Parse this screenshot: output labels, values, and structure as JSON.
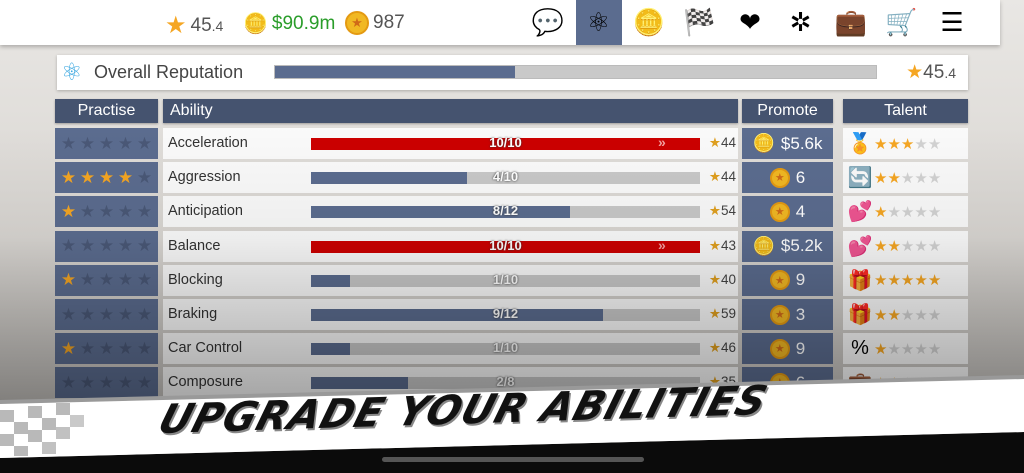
{
  "topbar": {
    "reputation": "45",
    "reputation_decimal": ".4",
    "money": "$90.9m",
    "tokens": "987",
    "nav": [
      {
        "icon": "chat-icon",
        "glyph": "💬"
      },
      {
        "icon": "atom-icon",
        "glyph": "⚛",
        "active": true
      },
      {
        "icon": "coins-icon",
        "glyph": "🪙"
      },
      {
        "icon": "checkered-flag-icon",
        "glyph": "🏁"
      },
      {
        "icon": "heart-icon",
        "glyph": "❤"
      },
      {
        "icon": "network-icon",
        "glyph": "✲"
      },
      {
        "icon": "briefcase-icon",
        "glyph": "💼"
      },
      {
        "icon": "cart-icon",
        "glyph": "🛒"
      },
      {
        "icon": "list-icon",
        "glyph": "☰"
      }
    ]
  },
  "reputation": {
    "label": "Overall Reputation",
    "value": "45",
    "value_decimal": ".4",
    "progress": 0.4
  },
  "headers": {
    "practise": "Practise",
    "ability": "Ability",
    "promote": "Promote",
    "talent": "Talent"
  },
  "rows": [
    {
      "name": "Acceleration",
      "current": 10,
      "max": 10,
      "frac": "10/10",
      "level": "44",
      "practise": 0,
      "promote": "$5.6k",
      "promote_icon": "coins-icon",
      "talent": 3,
      "talent_icon": "gold-medal-icon",
      "talent_glyph": "🏅"
    },
    {
      "name": "Aggression",
      "current": 4,
      "max": 10,
      "frac": "4/10",
      "level": "44",
      "practise": 4,
      "promote": "6",
      "promote_icon": "token-icon",
      "talent": 2,
      "talent_icon": "refresh-arrows-icon",
      "talent_glyph": "🔄"
    },
    {
      "name": "Anticipation",
      "current": 8,
      "max": 12,
      "frac": "8/12",
      "level": "54",
      "practise": 1,
      "promote": "4",
      "promote_icon": "token-icon",
      "talent": 1,
      "talent_icon": "hearts-token-icon",
      "talent_glyph": "💕"
    },
    {
      "name": "Balance",
      "current": 10,
      "max": 10,
      "frac": "10/10",
      "level": "43",
      "practise": 0,
      "promote": "$5.2k",
      "promote_icon": "coins-icon",
      "talent": 2,
      "talent_icon": "hearts-coins-icon",
      "talent_glyph": "💕"
    },
    {
      "name": "Blocking",
      "current": 1,
      "max": 10,
      "frac": "1/10",
      "level": "40",
      "practise": 1,
      "promote": "9",
      "promote_icon": "token-icon",
      "talent": 5,
      "talent_icon": "gift-coins-icon",
      "talent_glyph": "🎁"
    },
    {
      "name": "Braking",
      "current": 9,
      "max": 12,
      "frac": "9/12",
      "level": "59",
      "practise": 0,
      "promote": "3",
      "promote_icon": "token-icon",
      "talent": 2,
      "talent_icon": "gift-timer-icon",
      "talent_glyph": "🎁"
    },
    {
      "name": "Car Control",
      "current": 1,
      "max": 10,
      "frac": "1/10",
      "level": "46",
      "practise": 1,
      "promote": "9",
      "promote_icon": "token-icon",
      "talent": 1,
      "talent_icon": "percent-up-icon",
      "talent_glyph": "%"
    },
    {
      "name": "Composure",
      "current": 2,
      "max": 8,
      "frac": "2/8",
      "level": "35",
      "practise": 0,
      "promote": "6",
      "promote_icon": "token-icon",
      "talent": 2,
      "talent_icon": "briefcase-icon",
      "talent_glyph": "💼"
    }
  ],
  "banner": {
    "text": "UPGRADE YOUR ABILITIES"
  },
  "colors": {
    "accent": "#5b6c8f",
    "header": "#45536f",
    "maxed": "#cc0000",
    "star": "#f5a623",
    "money": "#2a9d2a"
  }
}
